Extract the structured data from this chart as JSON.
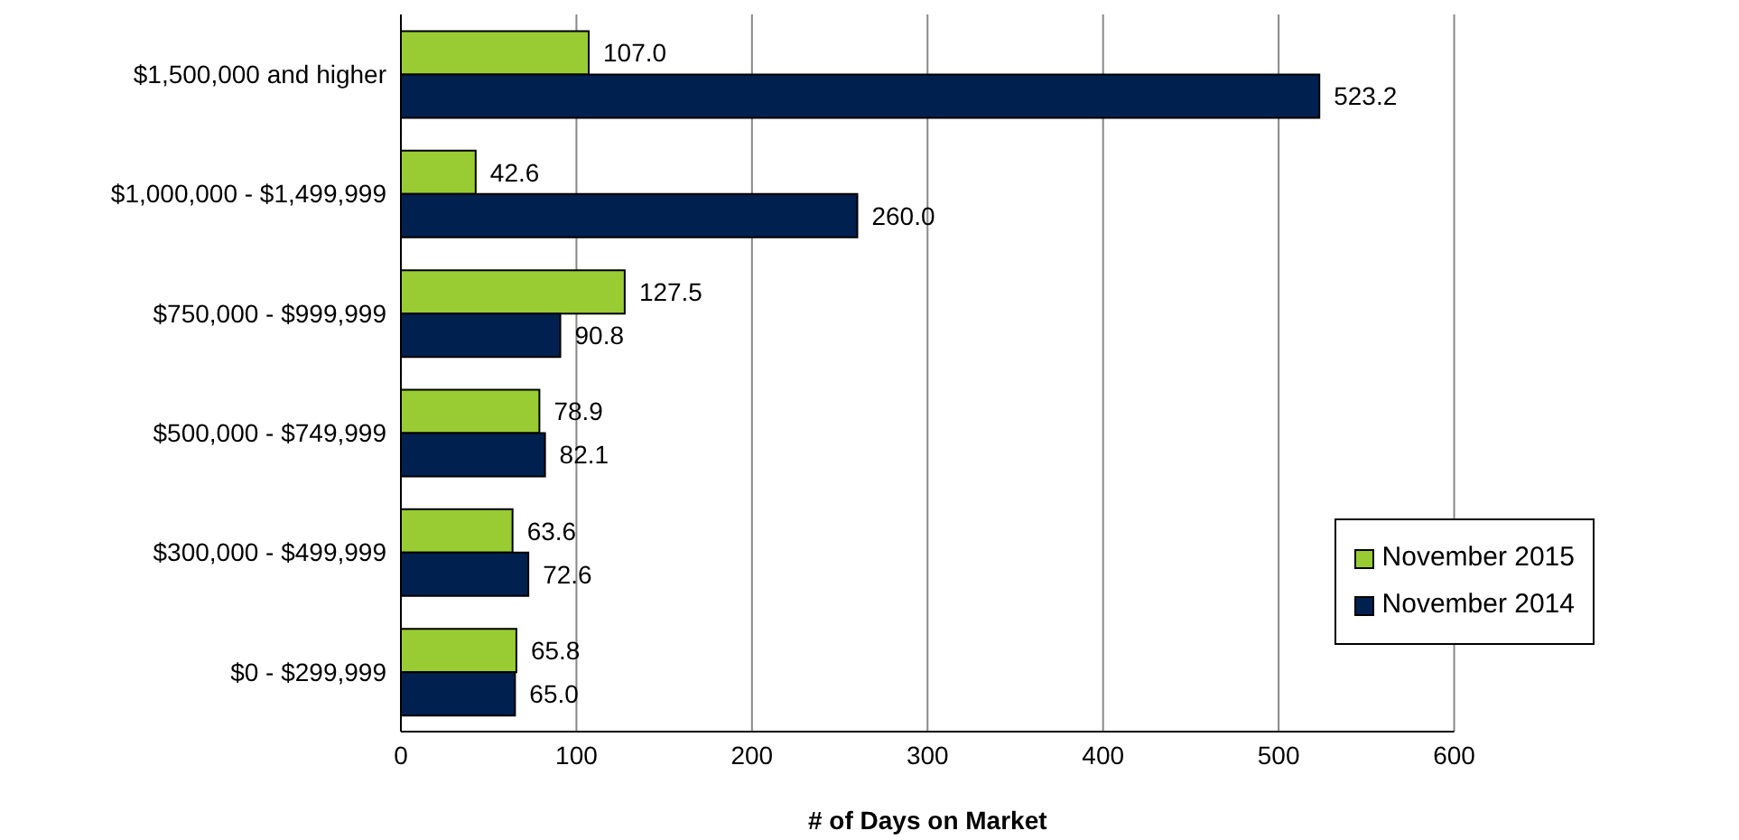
{
  "chart_data": {
    "type": "bar",
    "orientation": "horizontal",
    "xlabel": "# of Days on Market",
    "categories": [
      "$1,500,000 and higher",
      "$1,000,000 - $1,499,999",
      "$750,000 - $999,999",
      "$500,000 - $749,999",
      "$300,000 - $499,999",
      "$0 - $299,999"
    ],
    "series": [
      {
        "name": "November 2015",
        "color": "#99cc33",
        "values": [
          107.0,
          42.6,
          127.5,
          78.9,
          63.6,
          65.8
        ],
        "value_labels": [
          "107.0",
          "42.6",
          "127.5",
          "78.9",
          "63.6",
          "65.8"
        ]
      },
      {
        "name": "November 2014",
        "color": "#002050",
        "values": [
          523.2,
          260.0,
          90.8,
          82.1,
          72.6,
          65.0
        ],
        "value_labels": [
          "523.2",
          "260.0",
          "90.8",
          "82.1",
          "72.6",
          "65.0"
        ]
      }
    ],
    "xlim": [
      0,
      600
    ],
    "xticks": [
      0,
      100,
      200,
      300,
      400,
      500,
      600
    ],
    "grid": "x",
    "legend": "bottom right"
  }
}
